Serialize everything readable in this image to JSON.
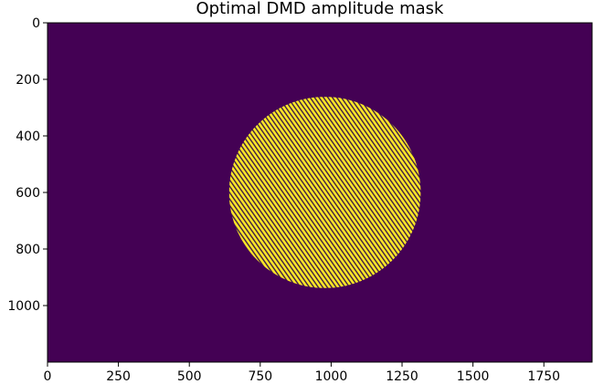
{
  "chart_data": {
    "type": "heatmap",
    "title": "Optimal DMD amplitude mask",
    "xlabel": "",
    "ylabel": "",
    "image_size": [
      1920,
      1200
    ],
    "xlim": [
      0,
      1920
    ],
    "ylim": [
      1200,
      0
    ],
    "y_inverted": true,
    "x_ticks": [
      0,
      250,
      500,
      750,
      1000,
      1250,
      1500,
      1750
    ],
    "y_ticks": [
      0,
      200,
      400,
      600,
      800,
      1000
    ],
    "x_tick_labels": [
      "0",
      "250",
      "500",
      "750",
      "1000",
      "1250",
      "1500",
      "1750"
    ],
    "y_tick_labels": [
      "0",
      "200",
      "400",
      "600",
      "800",
      "1000"
    ],
    "grid": false,
    "colormap": "viridis",
    "background_value": 0,
    "background_color": "#440154",
    "mask_color": "#fde725",
    "mask_shape": "circle",
    "mask_center": [
      978,
      600
    ],
    "mask_radius": 338,
    "mask_pattern": "binary diagonal stripes (on/off pixels)"
  }
}
